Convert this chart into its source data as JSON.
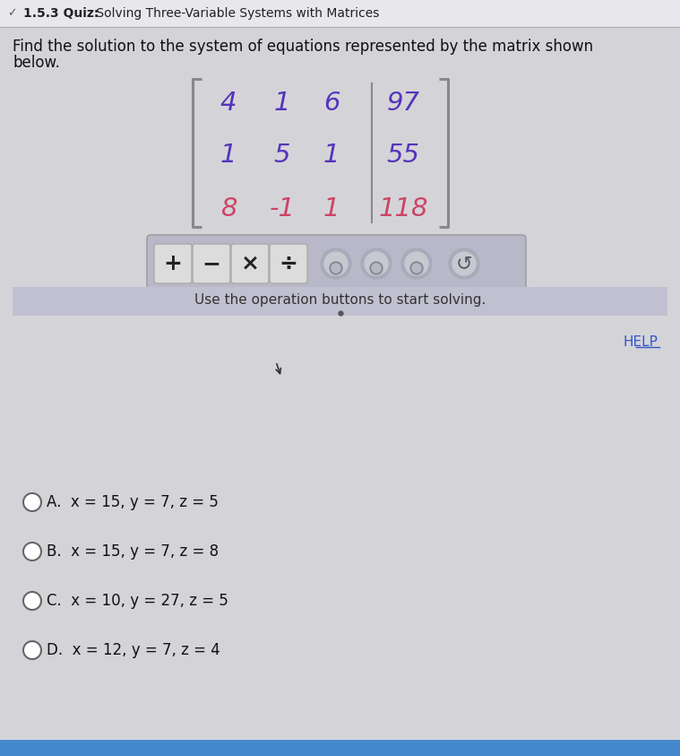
{
  "title": "1.5.3 Quiz:  Solving Three-Variable Systems with Matrices",
  "question_line1": "Find the solution to the system of equations represented by the matrix shown",
  "question_line2": "below.",
  "matrix": [
    [
      4,
      1,
      6,
      97
    ],
    [
      1,
      5,
      1,
      55
    ],
    [
      8,
      -1,
      1,
      118
    ]
  ],
  "row_colors": [
    "#5533bb",
    "#5533bb",
    "#cc4466"
  ],
  "last_col_colors": [
    "#5533bb",
    "#5533bb",
    "#cc4466"
  ],
  "instruction": "Use the operation buttons to start solving.",
  "help_text": "HELP",
  "help_color": "#3355cc",
  "choices": [
    "A.  x = 15, y = 7, z = 5",
    "B.  x = 15, y = 7, z = 8",
    "C.  x = 10, y = 27, z = 5",
    "D.  x = 12, y = 7, z = 4"
  ],
  "bg_color": "#d4d4d8",
  "header_bg": "#e8e8ec",
  "btn_area_bg": "#b8b8c8",
  "btn_face": "#dcdcdc",
  "instr_bg": "#c0c0d0",
  "bracket_color": "#888888",
  "divider_color": "#888888"
}
